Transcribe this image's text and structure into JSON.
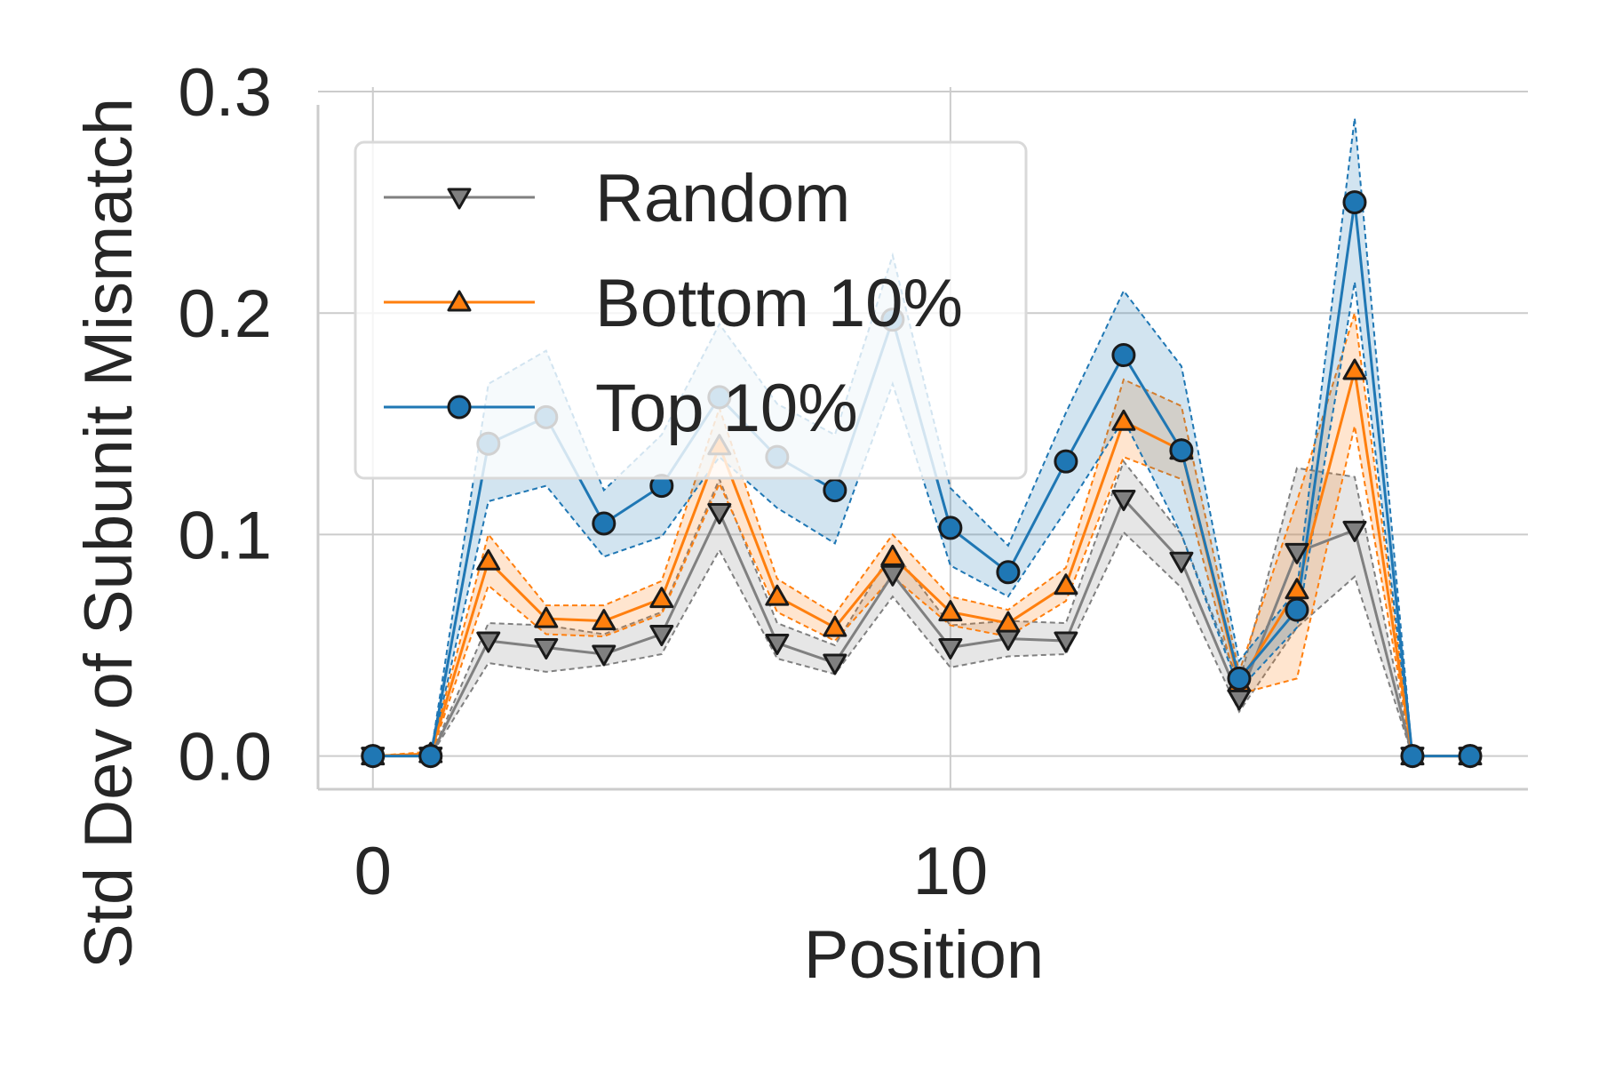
{
  "chart_data": {
    "type": "line",
    "title": "",
    "xlabel": "Position",
    "ylabel": "Std Dev of Subunit Mismatch",
    "xlim": [
      -0.95,
      20.0
    ],
    "ylim": [
      -0.015,
      0.302
    ],
    "xticks": [
      0,
      10
    ],
    "xtick_labels": [
      "0",
      "10"
    ],
    "yticks": [
      0.0,
      0.1,
      0.2,
      0.3
    ],
    "ytick_labels": [
      "0.0",
      "0.1",
      "0.2",
      "0.3"
    ],
    "grid": true,
    "legend_position": "top-left",
    "x": [
      0,
      1,
      2,
      3,
      4,
      5,
      6,
      7,
      8,
      9,
      10,
      11,
      12,
      13,
      14,
      15,
      16,
      17,
      18,
      19
    ],
    "series": [
      {
        "name": "Random",
        "color": "#808080",
        "marker": "triangle-down",
        "values": [
          0.0,
          0.0,
          0.052,
          0.049,
          0.046,
          0.055,
          0.11,
          0.051,
          0.042,
          0.082,
          0.049,
          0.053,
          0.052,
          0.116,
          0.088,
          0.026,
          0.092,
          0.102,
          0.0,
          0.0
        ],
        "lower": [
          0.0,
          0.0,
          0.042,
          0.038,
          0.041,
          0.046,
          0.093,
          0.044,
          0.037,
          0.072,
          0.04,
          0.045,
          0.046,
          0.101,
          0.076,
          0.02,
          0.058,
          0.081,
          0.0,
          0.0
        ],
        "upper": [
          0.0,
          0.0,
          0.06,
          0.059,
          0.055,
          0.065,
          0.125,
          0.06,
          0.05,
          0.093,
          0.059,
          0.061,
          0.06,
          0.133,
          0.1,
          0.033,
          0.13,
          0.126,
          0.0,
          0.0
        ]
      },
      {
        "name": "Bottom 10%",
        "color": "#ff7f0e",
        "marker": "triangle-up",
        "values": [
          0.0,
          0.001,
          0.088,
          0.062,
          0.061,
          0.071,
          0.14,
          0.072,
          0.058,
          0.09,
          0.065,
          0.06,
          0.077,
          0.151,
          0.138,
          0.033,
          0.075,
          0.174,
          0.0,
          0.0
        ],
        "lower": [
          0.0,
          0.0,
          0.077,
          0.055,
          0.054,
          0.064,
          0.123,
          0.065,
          0.052,
          0.081,
          0.059,
          0.054,
          0.07,
          0.135,
          0.125,
          0.028,
          0.035,
          0.149,
          0.0,
          0.0
        ],
        "upper": [
          0.0,
          0.002,
          0.1,
          0.068,
          0.068,
          0.079,
          0.157,
          0.08,
          0.064,
          0.1,
          0.072,
          0.066,
          0.085,
          0.17,
          0.158,
          0.038,
          0.115,
          0.2,
          0.0,
          0.0
        ]
      },
      {
        "name": "Top 10%",
        "color": "#1f77b4",
        "marker": "circle",
        "values": [
          0.0,
          0.0,
          0.141,
          0.153,
          0.105,
          0.122,
          0.162,
          0.135,
          0.12,
          0.197,
          0.103,
          0.083,
          0.133,
          0.181,
          0.138,
          0.035,
          0.066,
          0.25,
          0.0,
          0.0
        ],
        "lower": [
          0.0,
          0.0,
          0.115,
          0.122,
          0.09,
          0.099,
          0.135,
          0.112,
          0.096,
          0.168,
          0.086,
          0.072,
          0.111,
          0.152,
          0.1,
          0.03,
          0.058,
          0.214,
          0.0,
          0.0
        ],
        "upper": [
          0.0,
          0.0,
          0.168,
          0.183,
          0.12,
          0.145,
          0.195,
          0.159,
          0.145,
          0.226,
          0.121,
          0.095,
          0.155,
          0.21,
          0.176,
          0.043,
          0.075,
          0.288,
          0.0,
          0.0
        ]
      }
    ]
  }
}
